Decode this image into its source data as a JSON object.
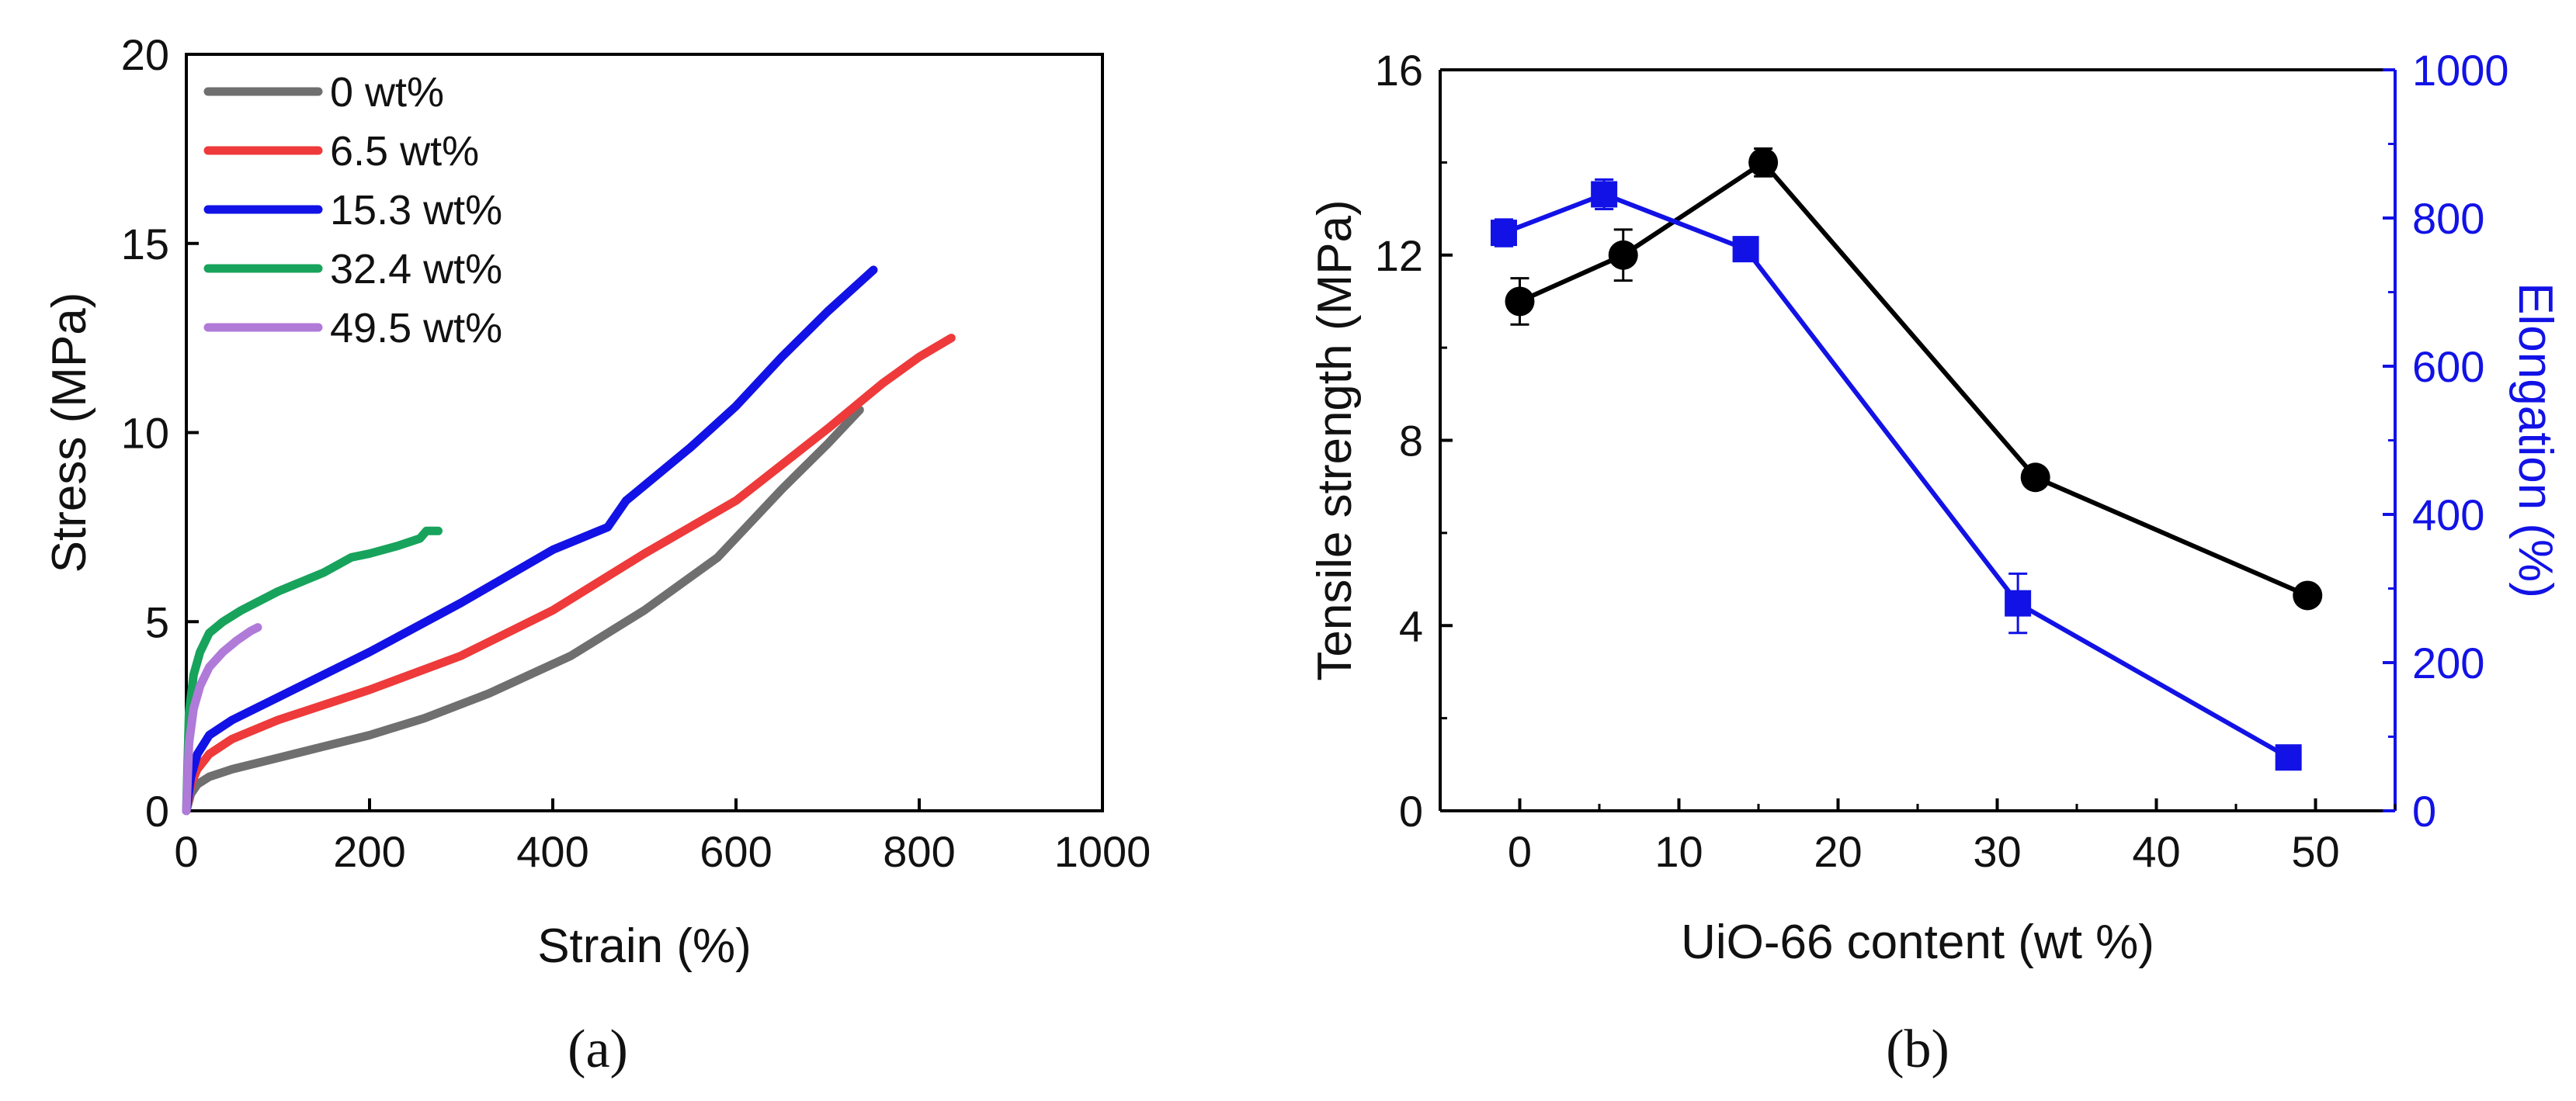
{
  "chart_data": [
    {
      "id": "a",
      "type": "line",
      "panel_label": "(a)",
      "xlabel": "Strain (%)",
      "ylabel": "Stress (MPa)",
      "xlim": [
        0,
        1000
      ],
      "ylim": [
        0,
        20
      ],
      "xticks": [
        0,
        200,
        400,
        600,
        800,
        1000
      ],
      "yticks": [
        0,
        5,
        10,
        15,
        20
      ],
      "legend_position": "top-left",
      "series": [
        {
          "name": "0  wt%",
          "color": "#6f6f6f",
          "x": [
            0,
            5,
            12,
            25,
            50,
            100,
            150,
            200,
            260,
            330,
            420,
            500,
            580,
            650,
            700,
            735
          ],
          "y": [
            0,
            0.45,
            0.7,
            0.9,
            1.1,
            1.4,
            1.7,
            2.0,
            2.45,
            3.1,
            4.1,
            5.3,
            6.7,
            8.5,
            9.7,
            10.6
          ]
        },
        {
          "name": "6.5 wt%",
          "color": "#ee3a3a",
          "x": [
            0,
            5,
            12,
            25,
            50,
            100,
            200,
            300,
            400,
            500,
            600,
            700,
            760,
            800,
            835
          ],
          "y": [
            0,
            0.7,
            1.1,
            1.5,
            1.9,
            2.4,
            3.2,
            4.1,
            5.3,
            6.8,
            8.2,
            10.1,
            11.3,
            12.0,
            12.5
          ]
        },
        {
          "name": "15.3 wt%",
          "color": "#1212e6",
          "x": [
            0,
            5,
            12,
            25,
            50,
            100,
            200,
            300,
            400,
            460,
            480,
            550,
            600,
            650,
            700,
            750
          ],
          "y": [
            0,
            0.9,
            1.5,
            2.0,
            2.4,
            3.0,
            4.2,
            5.5,
            6.9,
            7.5,
            8.2,
            9.6,
            10.7,
            12.0,
            13.2,
            14.3
          ]
        },
        {
          "name": "32.4 wt%",
          "color": "#17a35b",
          "x": [
            0,
            3,
            8,
            15,
            25,
            40,
            60,
            100,
            150,
            180,
            200,
            230,
            255,
            262,
            275
          ],
          "y": [
            0,
            2.6,
            3.6,
            4.2,
            4.7,
            5.0,
            5.3,
            5.8,
            6.3,
            6.7,
            6.8,
            7.0,
            7.2,
            7.4,
            7.4
          ]
        },
        {
          "name": "49.5 wt%",
          "color": "#b07ad9",
          "x": [
            0,
            3,
            8,
            15,
            25,
            40,
            55,
            70,
            78
          ],
          "y": [
            0,
            1.8,
            2.7,
            3.3,
            3.8,
            4.2,
            4.5,
            4.75,
            4.85
          ]
        }
      ]
    },
    {
      "id": "b",
      "type": "line",
      "panel_label": "(b)",
      "xlabel": "UiO-66 content (wt %)",
      "ylabel": "Tensile strength (MPa)",
      "y2label": "Elongation (%)",
      "xlim": [
        -5,
        55
      ],
      "ylim": [
        0,
        16
      ],
      "y2lim": [
        0,
        1000
      ],
      "xticks": [
        0,
        10,
        20,
        30,
        40,
        50
      ],
      "yticks": [
        0,
        4,
        8,
        12,
        16
      ],
      "y2ticks": [
        0,
        200,
        400,
        600,
        800,
        1000
      ],
      "colors": {
        "tensile": "#000000",
        "elongation": "#1212e6"
      },
      "series": [
        {
          "name": "Tensile strength",
          "axis": "left",
          "marker": "circle",
          "color": "#000000",
          "x": [
            0,
            6.5,
            15.3,
            32.4,
            49.5
          ],
          "y": [
            11.0,
            12.0,
            14.0,
            7.2,
            4.65
          ],
          "err": [
            0.5,
            0.55,
            0.3,
            0,
            0
          ]
        },
        {
          "name": "Elongation",
          "axis": "right",
          "marker": "square",
          "color": "#1212e6",
          "x": [
            -1,
            5.3,
            14.2,
            31.3,
            48.3
          ],
          "y": [
            780,
            832,
            758,
            280,
            72
          ],
          "err": [
            18,
            20,
            0,
            40,
            0
          ]
        }
      ]
    }
  ]
}
